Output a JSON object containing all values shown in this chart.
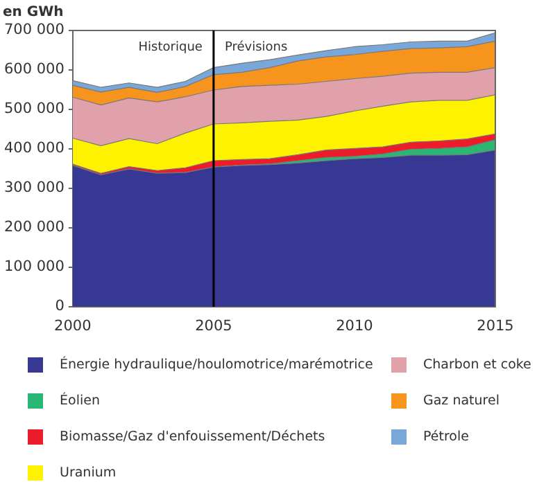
{
  "chart_data": {
    "type": "area",
    "stacked": true,
    "ylabel": "en GWh",
    "x": [
      2000,
      2001,
      2002,
      2003,
      2004,
      2005,
      2006,
      2007,
      2008,
      2009,
      2010,
      2011,
      2012,
      2013,
      2014,
      2015
    ],
    "xlim": [
      2000,
      2015
    ],
    "xticks": [
      2000,
      2005,
      2010,
      2015
    ],
    "ylim": [
      0,
      700000
    ],
    "yticks": [
      {
        "value": 0,
        "label": "0"
      },
      {
        "value": 100000,
        "label": "100 000"
      },
      {
        "value": 200000,
        "label": "200 000"
      },
      {
        "value": 300000,
        "label": "300 000"
      },
      {
        "value": 400000,
        "label": "400 000"
      },
      {
        "value": 500000,
        "label": "500 000"
      },
      {
        "value": 600000,
        "label": "600 000"
      },
      {
        "value": 700000,
        "label": "700 000"
      }
    ],
    "grid": false,
    "legend": "bottom",
    "ref_lines": [
      {
        "axis": "x",
        "value": 2005,
        "color": "#000000"
      }
    ],
    "annotations": [
      "Historique",
      "Prévisions"
    ],
    "series": [
      {
        "name": "Énergie hydraulique/houlomotrice/marémotrice",
        "color": "#363893",
        "values": [
          358000,
          334000,
          349000,
          338000,
          340000,
          354000,
          358000,
          360000,
          364000,
          370000,
          375000,
          378000,
          384000,
          384000,
          385000,
          397000
        ]
      },
      {
        "name": "Éolien",
        "color": "#2ab673",
        "values": [
          0,
          0,
          0,
          0,
          0,
          0,
          1000,
          2000,
          6000,
          8000,
          6000,
          9000,
          15000,
          17000,
          20000,
          26000
        ]
      },
      {
        "name": "Biomasse/Gaz d'enfouissement/Déchets",
        "color": "#ec1c2a",
        "values": [
          3000,
          4000,
          6000,
          7000,
          12000,
          16000,
          14000,
          13000,
          15000,
          19000,
          20000,
          18000,
          18000,
          19000,
          20000,
          15000
        ]
      },
      {
        "name": "Uranium",
        "color": "#fff200",
        "values": [
          66000,
          70000,
          71000,
          68000,
          88000,
          93000,
          93000,
          95000,
          88000,
          85000,
          95000,
          103000,
          102000,
          103000,
          98000,
          99000
        ]
      },
      {
        "name": "Charbon et coke",
        "color": "#e0a1ab",
        "values": [
          104000,
          103000,
          103000,
          106000,
          92000,
          86000,
          92000,
          91000,
          91000,
          89000,
          82000,
          76000,
          73000,
          71000,
          71000,
          69000
        ]
      },
      {
        "name": "Gaz naturel",
        "color": "#f7941d",
        "values": [
          30000,
          33000,
          27000,
          24000,
          26000,
          39000,
          36000,
          45000,
          59000,
          62000,
          61000,
          63000,
          62000,
          62000,
          65000,
          67000
        ]
      },
      {
        "name": "Pétrole",
        "color": "#7aa7d9",
        "values": [
          12000,
          12000,
          11000,
          13000,
          13000,
          18000,
          23000,
          20000,
          15000,
          16000,
          20000,
          17000,
          17000,
          17000,
          14000,
          21000
        ]
      }
    ]
  }
}
